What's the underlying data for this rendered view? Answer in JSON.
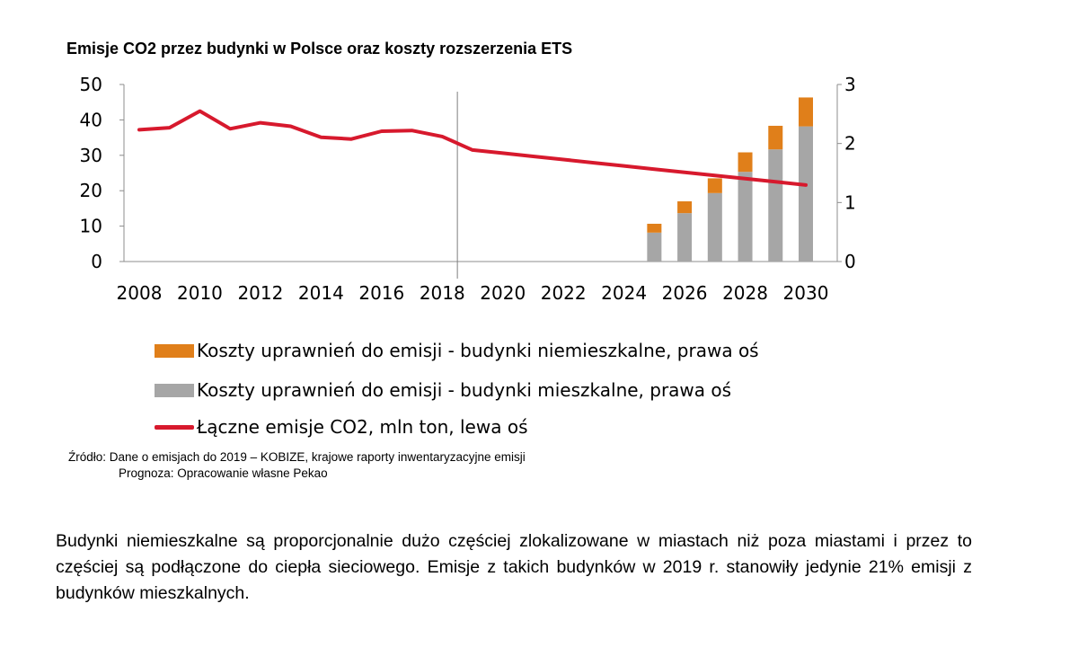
{
  "title": "Emisje CO2 przez budynki w Polsce oraz koszty rozszerzenia ETS",
  "chart_data": {
    "type": "bar+line",
    "x_ticks": [
      "2008",
      "2010",
      "2012",
      "2014",
      "2016",
      "2018",
      "2020",
      "2022",
      "2024",
      "2026",
      "2028",
      "2030"
    ],
    "xlim": [
      2008,
      2030
    ],
    "left_axis": {
      "ylim": [
        0,
        50
      ],
      "ticks": [
        "0",
        "10",
        "20",
        "30",
        "40",
        "50"
      ]
    },
    "right_axis": {
      "ylim": [
        0,
        3
      ],
      "ticks": [
        "0",
        "1",
        "2",
        "3"
      ]
    },
    "vertical_marker_year": 2018.5,
    "grid": false,
    "legend_position": "bottom",
    "series": [
      {
        "name": "Koszty uprawnień do emisji - budynki niemieszkalne, prawa oś",
        "kind": "stacked-bar",
        "axis": "right",
        "color": "#E07F1A",
        "x": [
          2025,
          2026,
          2027,
          2028,
          2029,
          2030
        ],
        "values": [
          0.15,
          0.2,
          0.25,
          0.33,
          0.4,
          0.49
        ]
      },
      {
        "name": "Koszty uprawnień do emisji - budynki mieszkalne, prawa oś",
        "kind": "stacked-bar",
        "axis": "right",
        "color": "#A6A6A6",
        "x": [
          2025,
          2026,
          2027,
          2028,
          2029,
          2030
        ],
        "values": [
          0.49,
          0.82,
          1.16,
          1.52,
          1.9,
          2.29
        ]
      },
      {
        "name": "Łączne emisje CO2, mln ton, lewa oś",
        "kind": "line",
        "axis": "left",
        "color": "#D7192D",
        "x": [
          2008,
          2009,
          2010,
          2011,
          2012,
          2013,
          2014,
          2015,
          2016,
          2017,
          2018,
          2019,
          2020,
          2021,
          2022,
          2023,
          2024,
          2025,
          2026,
          2027,
          2028,
          2029,
          2030
        ],
        "values": [
          37.2,
          37.8,
          42.5,
          37.5,
          39.2,
          38.2,
          35.1,
          34.6,
          36.8,
          37.0,
          35.3,
          31.5,
          30.6,
          29.7,
          28.8,
          27.9,
          27.0,
          26.1,
          25.2,
          24.3,
          23.4,
          22.5,
          21.6
        ]
      }
    ]
  },
  "source": {
    "line1": "Źródło: Dane o emisjach do 2019 – KOBIZE, krajowe raporty inwentaryzacyjne emisji",
    "line2": "Prognoza: Opracowanie własne Pekao"
  },
  "body_text": "Budynki niemieszkalne są proporcjonalnie dużo częściej zlokalizowane w miastach niż poza miastami i przez to częściej są podłączone do ciepła sieciowego. Emisje z takich budynków w 2019 r. stanowiły jedynie 21% emisji z budynków mieszkalnych."
}
